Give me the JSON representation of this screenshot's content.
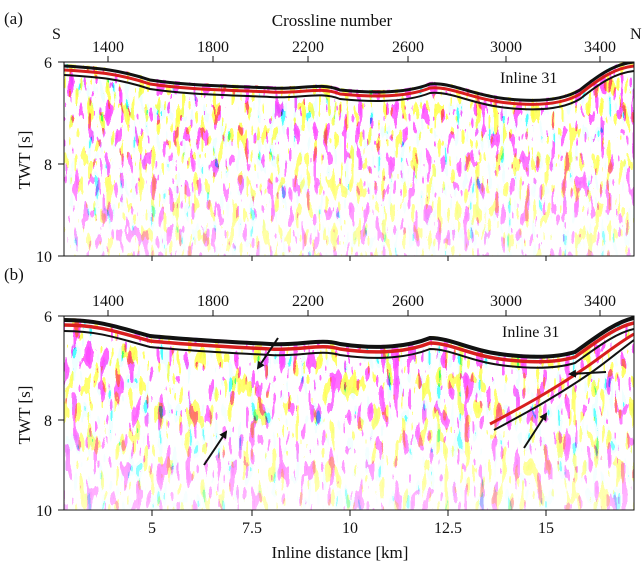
{
  "panel_a": {
    "panel_label": "(a)",
    "top_axis_title": "Crossline number",
    "left_corner_label": "S",
    "right_corner_label": "N",
    "top_ticks": [
      "1400",
      "1800",
      "2200",
      "2600",
      "3000",
      "3400"
    ],
    "ylabel": "TWT [s]",
    "y_ticks": [
      "6",
      "8",
      "10"
    ],
    "annotation": "Inline 31"
  },
  "panel_b": {
    "panel_label": "(b)",
    "top_ticks": [
      "1400",
      "1800",
      "2200",
      "2600",
      "3000",
      "3400"
    ],
    "ylabel": "TWT [s]",
    "y_ticks": [
      "6",
      "8",
      "10"
    ],
    "annotation": "Inline 31",
    "bottom_ticks": [
      "5",
      "7.5",
      "10",
      "12.5",
      "15"
    ],
    "xlabel": "Inline distance [km]",
    "arrow_count": 4
  },
  "colors": {
    "positive_amplitude": "#d81e1e",
    "negative_amplitude": "#111111",
    "background": "#ffffff"
  }
}
